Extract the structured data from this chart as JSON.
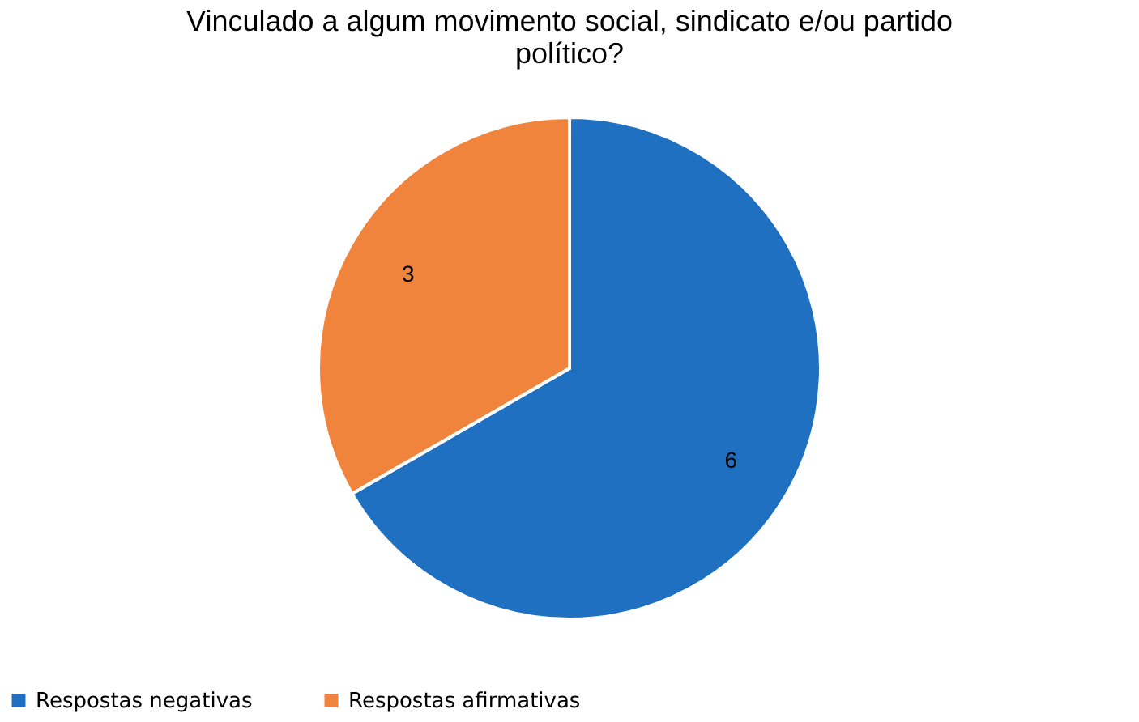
{
  "chart_data": {
    "type": "pie",
    "title": "Vinculado a algum movimento social, sindicato e/ou partido político?",
    "categories": [
      "Respostas negativas",
      "Respostas afirmativas"
    ],
    "values": [
      6,
      3
    ],
    "colors": [
      "#1f70c1",
      "#f0843c"
    ],
    "data_labels": true,
    "legend": "bottom"
  }
}
